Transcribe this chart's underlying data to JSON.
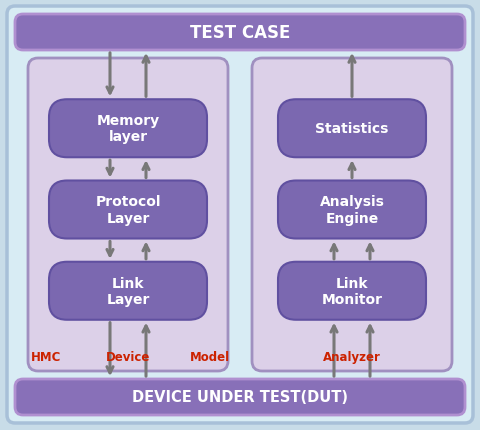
{
  "background_outer": "#c8dce8",
  "background_inner": "#d8ecf4",
  "panel_bg_left": "#dcd0e8",
  "panel_bg_right": "#dcd0e8",
  "panel_border": "#a090c0",
  "block_fill": "#7b68b0",
  "block_edge": "#6050a0",
  "block_text_color": "white",
  "bar_fill": "#8870b8",
  "bar_edge": "#c0a8d8",
  "bar_text": "white",
  "arrow_color": "#787878",
  "label_color_red": "#cc2200",
  "top_bar_text": "TEST CASE",
  "bottom_bar_text": "DEVICE UNDER TEST(DUT)",
  "left_blocks": [
    "Memory\nlayer",
    "Protocol\nLayer",
    "Link\nLayer"
  ],
  "right_blocks": [
    "Statistics",
    "Analysis\nEngine",
    "Link\nMonitor"
  ],
  "left_labels": [
    "HMC",
    "Device",
    "Model"
  ],
  "right_label": "Analyzer",
  "figw": 4.8,
  "figh": 4.31,
  "dpi": 100
}
